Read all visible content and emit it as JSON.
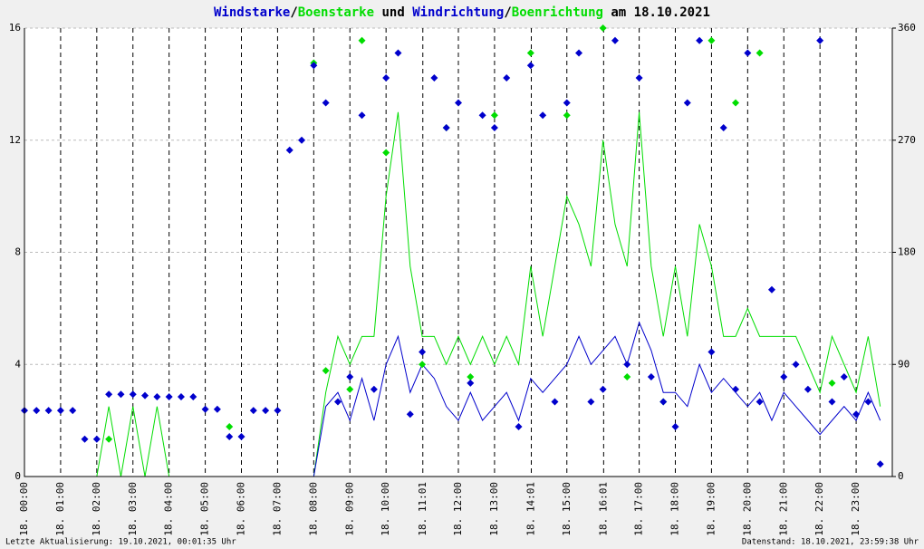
{
  "chart_data": {
    "type": "line",
    "title_parts": [
      "/",
      " und ",
      "/",
      " am 18.10.2021"
    ],
    "footer_left": "Letzte Aktualisierung: 19.10.2021, 00:01:35 Uhr",
    "footer_right": "Datenstand: 18.10.2021, 23:59:38 Uhr",
    "xlim": [
      0,
      24
    ],
    "xticks": [
      {
        "value": 0,
        "label": "18. 00:00"
      },
      {
        "value": 1,
        "label": "18. 01:00"
      },
      {
        "value": 2,
        "label": "18. 02:00"
      },
      {
        "value": 3,
        "label": "18. 03:00"
      },
      {
        "value": 4,
        "label": "18. 04:00"
      },
      {
        "value": 5,
        "label": "18. 05:00"
      },
      {
        "value": 6,
        "label": "18. 06:00"
      },
      {
        "value": 7,
        "label": "18. 07:00"
      },
      {
        "value": 8,
        "label": "18. 08:00"
      },
      {
        "value": 9,
        "label": "18. 09:00"
      },
      {
        "value": 10,
        "label": "18. 10:00"
      },
      {
        "value": 11.017,
        "label": "18. 11:01"
      },
      {
        "value": 12,
        "label": "18. 12:00"
      },
      {
        "value": 13,
        "label": "18. 13:00"
      },
      {
        "value": 14.017,
        "label": "18. 14:01"
      },
      {
        "value": 15,
        "label": "18. 15:00"
      },
      {
        "value": 16.017,
        "label": "18. 16:01"
      },
      {
        "value": 17,
        "label": "18. 17:00"
      },
      {
        "value": 18,
        "label": "18. 18:00"
      },
      {
        "value": 19,
        "label": "18. 19:00"
      },
      {
        "value": 20,
        "label": "18. 20:00"
      },
      {
        "value": 21,
        "label": "18. 21:00"
      },
      {
        "value": 22,
        "label": "18. 22:00"
      },
      {
        "value": 23,
        "label": "18. 23:00"
      }
    ],
    "ylim": [
      0,
      16
    ],
    "yticks": [
      0,
      4,
      8,
      12,
      16
    ],
    "y2lim": [
      0,
      360
    ],
    "y2ticks": [
      0,
      90,
      180,
      270,
      360
    ],
    "grid": true,
    "x": [
      0,
      0.333,
      0.667,
      1,
      1.333,
      1.667,
      2,
      2.333,
      2.667,
      3,
      3.333,
      3.667,
      4,
      4.333,
      4.667,
      5,
      5.333,
      5.667,
      6,
      6.333,
      6.667,
      7,
      7.333,
      7.667,
      8,
      8.333,
      8.667,
      9,
      9.333,
      9.667,
      10,
      10.333,
      10.667,
      11,
      11.333,
      11.667,
      12,
      12.333,
      12.667,
      13,
      13.333,
      13.667,
      14,
      14.333,
      14.667,
      15,
      15.333,
      15.667,
      16,
      16.333,
      16.667,
      17,
      17.333,
      17.667,
      18,
      18.333,
      18.667,
      19,
      19.333,
      19.667,
      20,
      20.333,
      20.667,
      21,
      21.333,
      21.667,
      22,
      22.333,
      22.667,
      23,
      23.333,
      23.667
    ],
    "series": [
      {
        "name": "Windstarke",
        "color": "#0000cc",
        "mark": "line",
        "values": [
          0,
          0,
          0,
          0,
          0,
          0,
          0,
          0,
          0,
          0,
          0,
          0,
          0,
          0,
          0,
          0,
          0,
          0,
          0,
          0,
          0,
          0,
          0,
          0,
          0,
          2.5,
          3,
          2,
          3.5,
          2,
          4,
          5,
          3,
          4,
          3.5,
          2.5,
          2,
          3,
          2,
          2.5,
          3,
          2,
          3.5,
          3,
          3.5,
          4,
          5,
          4,
          4.5,
          5,
          4,
          5.5,
          4.5,
          3,
          3,
          2.5,
          4,
          3,
          3.5,
          3,
          2.5,
          3,
          2,
          3,
          2.5,
          2,
          1.5,
          2,
          2.5,
          2,
          3,
          2
        ]
      },
      {
        "name": "Boenstarke",
        "color": "#00dd00",
        "mark": "line",
        "values": [
          0,
          0,
          0,
          0,
          0,
          0,
          0,
          2.5,
          0,
          2.5,
          0,
          2.5,
          0,
          0,
          0,
          0,
          0,
          0,
          0,
          0,
          0,
          0,
          0,
          0,
          0,
          3,
          5,
          4,
          5,
          5,
          10,
          13,
          7.5,
          5,
          5,
          4,
          5,
          4,
          5,
          4,
          5,
          4,
          7.5,
          5,
          7.5,
          10,
          9,
          7.5,
          12,
          9,
          7.5,
          13,
          7.5,
          5,
          7.5,
          5,
          9,
          7.5,
          5,
          5,
          6,
          5,
          5,
          5,
          5,
          4,
          3,
          5,
          4,
          3,
          5,
          2.5
        ]
      },
      {
        "name": "Windrichtung",
        "color": "#0000cc",
        "mark": "scatter",
        "axis": "y2",
        "values": [
          53,
          53,
          53,
          53,
          53,
          30,
          30,
          66,
          66,
          66,
          65,
          64,
          64,
          64,
          64,
          54,
          54,
          32,
          32,
          53,
          53,
          53,
          262,
          270,
          330,
          300,
          60,
          80,
          290,
          70,
          320,
          340,
          50,
          100,
          320,
          280,
          300,
          75,
          290,
          280,
          320,
          40,
          330,
          290,
          60,
          300,
          340,
          60,
          70,
          350,
          90,
          320,
          80,
          60,
          40,
          300,
          350,
          100,
          280,
          70,
          340,
          60,
          150,
          80,
          90,
          70,
          350,
          60,
          80,
          50,
          60,
          10
        ]
      },
      {
        "name": "Boenrichtung",
        "color": "#00dd00",
        "mark": "scatter",
        "axis": "y2",
        "values": [
          null,
          null,
          null,
          null,
          null,
          null,
          null,
          30,
          null,
          null,
          null,
          null,
          null,
          null,
          null,
          null,
          null,
          40,
          null,
          null,
          null,
          null,
          null,
          null,
          332,
          85,
          null,
          70,
          350,
          null,
          260,
          null,
          null,
          90,
          null,
          280,
          null,
          80,
          null,
          290,
          null,
          null,
          340,
          null,
          null,
          290,
          null,
          null,
          360,
          null,
          80,
          null,
          null,
          60,
          null,
          null,
          null,
          350,
          null,
          300,
          null,
          340,
          null,
          null,
          null,
          null,
          null,
          75,
          null,
          null,
          null,
          null
        ]
      }
    ]
  }
}
